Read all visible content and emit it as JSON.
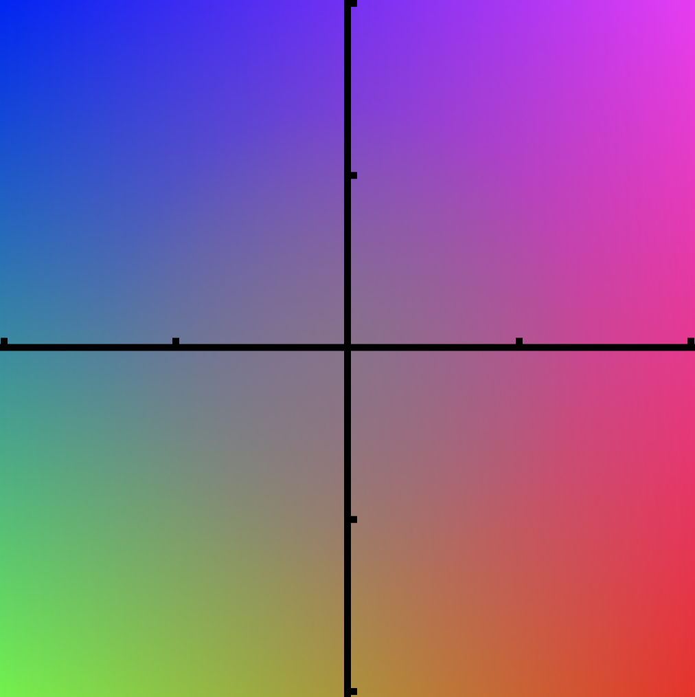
{
  "chart_data": {
    "type": "heatmap",
    "title": "",
    "xlabel": "",
    "ylabel": "",
    "xlim": [
      -1,
      1
    ],
    "ylim": [
      -1,
      1
    ],
    "x_ticks": [
      -1,
      -0.5,
      0,
      0.5,
      1
    ],
    "y_ticks": [
      -1,
      -0.5,
      0,
      0.5,
      1
    ],
    "tick_labels_shown": false,
    "grid": false,
    "legend": "none",
    "axes_style": "centered crosshair through origin",
    "corner_colors": {
      "top_left": "#0026f2",
      "top_right": "#e63df2",
      "bottom_left": "#73f24d",
      "bottom_right": "#e6332a",
      "center": "#808080"
    },
    "axis_color": "#000000"
  }
}
